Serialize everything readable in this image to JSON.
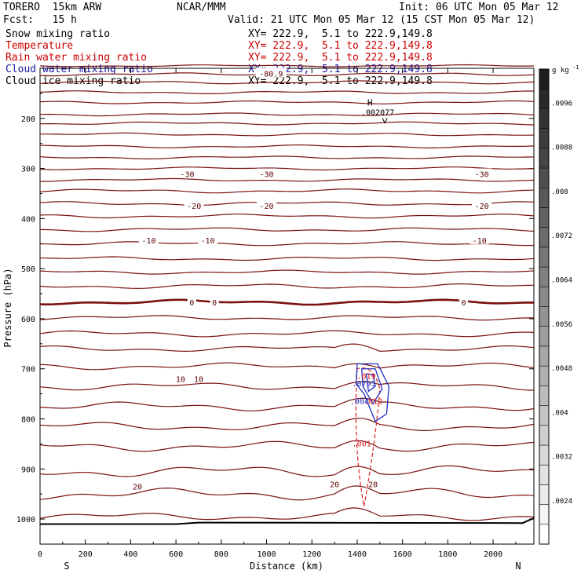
{
  "header": {
    "model": "TORERO  15km ARW",
    "center": "NCAR/MMM",
    "init": "Init: 06 UTC Mon 05 Mar 12",
    "fcst": "Fcst:   15 h",
    "valid": "Valid: 21 UTC Mon 05 Mar 12 (15 CST Mon 05 Mar 12)"
  },
  "legend": [
    {
      "name": "Snow mixing ratio",
      "range": "XY= 222.9,  5.1 to 222.9,149.8",
      "color": "#000000"
    },
    {
      "name": "Temperature",
      "range": "XY= 222.9,  5.1 to 222.9,149.8",
      "color": "#cc0000"
    },
    {
      "name": "Rain water mixing ratio",
      "range": "XY= 222.9,  5.1 to 222.9,149.8",
      "color": "#cc0000"
    },
    {
      "name": "Cloud water mixing ratio",
      "range": "XY= 222.9,  5.1 to 222.9,149.8",
      "color": "#1a1aa6"
    },
    {
      "name": "Cloud ice mixing ratio",
      "range": "XY= 222.9,  5.1 to 222.9,149.8",
      "color": "#000000"
    }
  ],
  "chart_data": {
    "type": "contour",
    "xlabel": "Distance (km)",
    "ylabel": "Pressure (hPa)",
    "xlim": [
      0,
      2180
    ],
    "ylim": [
      1050,
      100
    ],
    "x_ticks": [
      0,
      200,
      400,
      600,
      800,
      1000,
      1200,
      1400,
      1600,
      1800,
      2000
    ],
    "y_ticks": [
      200,
      300,
      400,
      500,
      600,
      700,
      800,
      900,
      1000
    ],
    "end_labels": {
      "left": "S",
      "right": "N"
    },
    "colorbar": {
      "unit": "g kg",
      "unit_exp": "-1",
      "ticks": [
        ".0024",
        ".0032",
        ".004",
        ".0048",
        ".0056",
        ".0064",
        ".0072",
        ".008",
        ".0088",
        ".0096"
      ]
    },
    "isotherms": [
      {
        "p": 95,
        "amp": 2
      },
      {
        "p": 112,
        "amp": 3
      },
      {
        "p": 128,
        "amp": 3
      },
      {
        "p": 148,
        "amp": 3
      },
      {
        "p": 168,
        "amp": 3
      },
      {
        "p": 192,
        "amp": 3
      },
      {
        "p": 210,
        "amp": 3
      },
      {
        "p": 232,
        "amp": 3
      },
      {
        "p": 256,
        "amp": 3
      },
      {
        "p": 278,
        "amp": 3
      },
      {
        "p": 300,
        "amp": 3
      },
      {
        "p": 323,
        "amp": 3
      },
      {
        "p": 345,
        "amp": 4
      },
      {
        "p": 370,
        "amp": 4
      },
      {
        "p": 395,
        "amp": 4
      },
      {
        "p": 422,
        "amp": 4
      },
      {
        "p": 450,
        "amp": 4
      },
      {
        "p": 480,
        "amp": 4
      },
      {
        "p": 507,
        "amp": 4
      },
      {
        "p": 535,
        "amp": 5
      },
      {
        "p": 567,
        "amp": 5,
        "bold": true
      },
      {
        "p": 598,
        "amp": 5
      },
      {
        "p": 630,
        "amp": 6
      },
      {
        "p": 660,
        "amp": 6
      },
      {
        "p": 695,
        "amp": 7
      },
      {
        "p": 735,
        "amp": 8
      },
      {
        "p": 775,
        "amp": 9
      },
      {
        "p": 815,
        "amp": 9
      },
      {
        "p": 855,
        "amp": 10
      },
      {
        "p": 905,
        "amp": 12
      },
      {
        "p": 950,
        "amp": 12
      },
      {
        "p": 995,
        "amp": 8
      }
    ],
    "temperature_labels": [
      {
        "text": "-80.9",
        "x": 1020,
        "p": 110
      },
      {
        "text": "-30",
        "x": 650,
        "p": 311
      },
      {
        "text": "-30",
        "x": 1000,
        "p": 311
      },
      {
        "text": "-30",
        "x": 1950,
        "p": 311
      },
      {
        "text": "-20",
        "x": 680,
        "p": 374
      },
      {
        "text": "-20",
        "x": 1000,
        "p": 374
      },
      {
        "text": "-20",
        "x": 1950,
        "p": 374
      },
      {
        "text": "-10",
        "x": 480,
        "p": 443
      },
      {
        "text": "-10",
        "x": 740,
        "p": 443
      },
      {
        "text": "-10",
        "x": 1940,
        "p": 443
      },
      {
        "text": "0",
        "x": 670,
        "p": 567
      },
      {
        "text": "0",
        "x": 770,
        "p": 567
      },
      {
        "text": "0",
        "x": 1870,
        "p": 567
      },
      {
        "text": "10",
        "x": 620,
        "p": 720
      },
      {
        "text": "10",
        "x": 700,
        "p": 720
      },
      {
        "text": "20",
        "x": 430,
        "p": 935
      },
      {
        "text": "20",
        "x": 1300,
        "p": 930
      },
      {
        "text": "20",
        "x": 1470,
        "p": 930
      }
    ],
    "cloud_water_labels": [
      {
        "text": ".0795",
        "x": 1430,
        "p": 735
      },
      {
        "text": ".004",
        "x": 1410,
        "p": 770
      }
    ],
    "rain_water_labels": [
      {
        "text": ".019",
        "x": 1440,
        "p": 720
      },
      {
        "text": ".012",
        "x": 1470,
        "p": 770
      },
      {
        "text": ".001",
        "x": 1420,
        "p": 855
      }
    ],
    "maximum": {
      "mark": "H",
      "value": ".002077",
      "x": 1470,
      "p": 187
    }
  }
}
